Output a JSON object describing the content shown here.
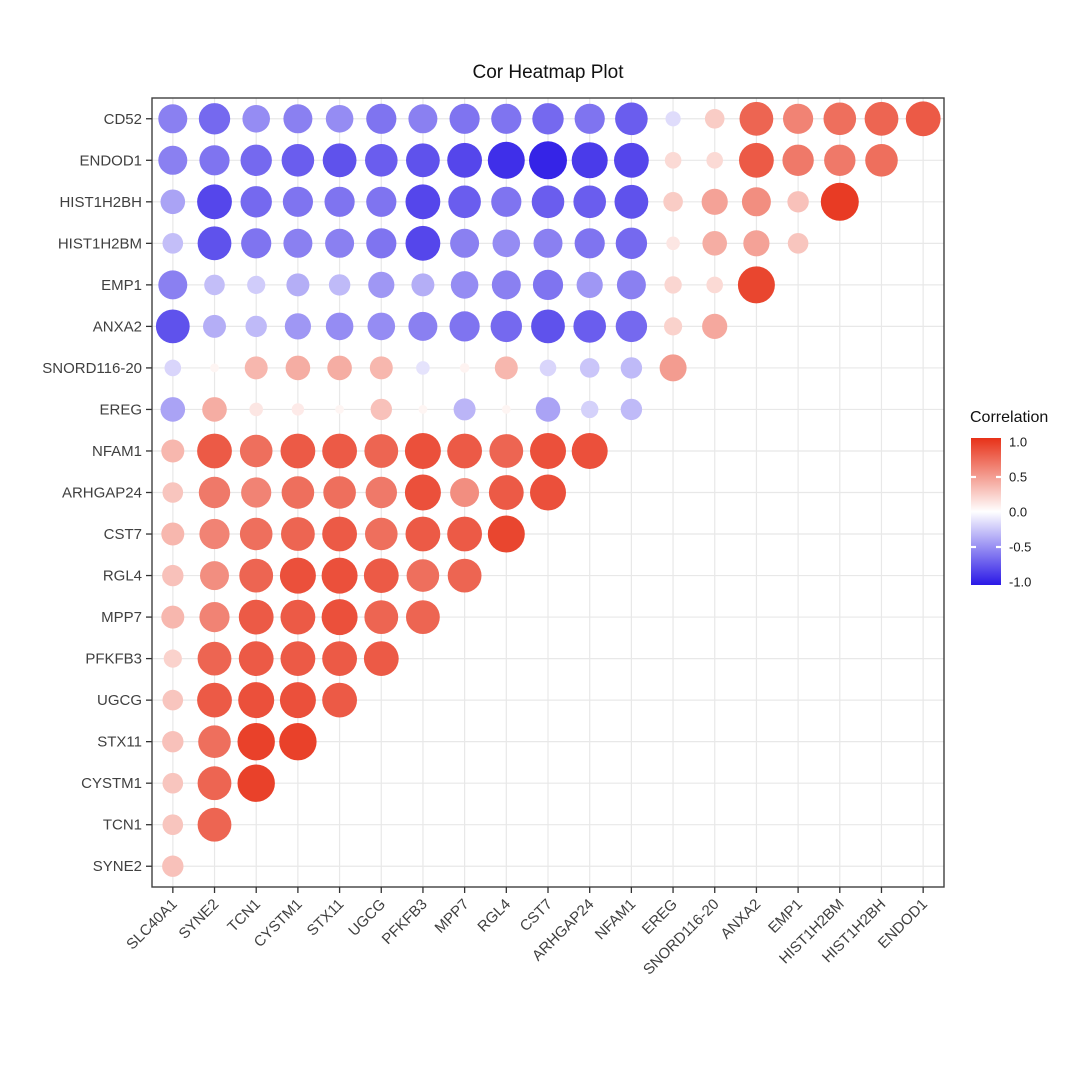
{
  "page": {
    "title": "Cor Heatmap Plot"
  },
  "legend": {
    "title": "Correlation"
  },
  "chart_data": {
    "type": "heatmap",
    "subtype": "correlation-bubble-matrix",
    "title": "Cor Heatmap Plot",
    "legend_title": "Correlation",
    "legend_ticks": [
      "1.0",
      "0.5",
      "0.0",
      "-0.5",
      "-1.0"
    ],
    "legend_tick_values": [
      1.0,
      0.5,
      0.0,
      -0.5,
      -1.0
    ],
    "color_scale": {
      "min": -1,
      "max": 1,
      "low": "#2A18E6",
      "mid": "#FFFFFF",
      "high": "#E73118"
    },
    "size_encoding": "dot size proportional to |correlation|",
    "grid": true,
    "legend_position": "right",
    "x_categories": [
      "SLC40A1",
      "SYNE2",
      "TCN1",
      "CYSTM1",
      "STX11",
      "UGCG",
      "PFKFB3",
      "MPP7",
      "RGL4",
      "CST7",
      "ARHGAP24",
      "NFAM1",
      "EREG",
      "SNORD116-20",
      "ANXA2",
      "EMP1",
      "HIST1H2BM",
      "HIST1H2BH",
      "ENDOD1"
    ],
    "y_categories": [
      "CD52",
      "ENDOD1",
      "HIST1H2BH",
      "HIST1H2BM",
      "EMP1",
      "ANXA2",
      "SNORD116-20",
      "EREG",
      "NFAM1",
      "ARHGAP24",
      "CST7",
      "RGL4",
      "MPP7",
      "PFKFB3",
      "UGCG",
      "STX11",
      "CYSTM1",
      "TCN1",
      "SYNE2"
    ],
    "values": [
      [
        -0.55,
        -0.65,
        -0.5,
        -0.55,
        -0.5,
        -0.6,
        -0.55,
        -0.6,
        -0.6,
        -0.65,
        -0.6,
        -0.7,
        -0.15,
        0.25,
        0.75,
        0.6,
        0.7,
        0.75,
        0.8
      ],
      [
        -0.55,
        -0.6,
        -0.65,
        -0.7,
        -0.75,
        -0.7,
        -0.75,
        -0.8,
        -0.9,
        -0.95,
        -0.85,
        -0.8,
        0.18,
        0.18,
        0.8,
        0.65,
        0.65,
        0.7,
        null
      ],
      [
        -0.4,
        -0.8,
        -0.65,
        -0.6,
        -0.6,
        -0.6,
        -0.8,
        -0.7,
        -0.6,
        -0.7,
        -0.7,
        -0.75,
        0.25,
        0.45,
        0.55,
        0.3,
        0.95,
        null,
        null
      ],
      [
        -0.28,
        -0.75,
        -0.6,
        -0.55,
        -0.55,
        -0.6,
        -0.8,
        -0.55,
        -0.5,
        -0.55,
        -0.6,
        -0.65,
        0.12,
        0.4,
        0.45,
        0.28,
        null,
        null,
        null
      ],
      [
        -0.55,
        -0.28,
        -0.22,
        -0.35,
        -0.3,
        -0.45,
        -0.35,
        -0.5,
        -0.55,
        -0.6,
        -0.45,
        -0.55,
        0.2,
        0.18,
        0.9,
        null,
        null,
        null,
        null
      ],
      [
        -0.75,
        -0.35,
        -0.3,
        -0.45,
        -0.5,
        -0.5,
        -0.55,
        -0.6,
        -0.65,
        -0.75,
        -0.7,
        -0.65,
        0.22,
        0.42,
        null,
        null,
        null,
        null,
        null
      ],
      [
        -0.18,
        0.05,
        0.35,
        0.4,
        0.4,
        0.35,
        -0.12,
        0.06,
        0.35,
        -0.18,
        -0.25,
        -0.3,
        0.48,
        null,
        null,
        null,
        null,
        null,
        null
      ],
      [
        -0.4,
        0.4,
        0.12,
        0.1,
        0.05,
        0.3,
        0.05,
        -0.32,
        0.05,
        -0.4,
        -0.2,
        -0.3,
        null,
        null,
        null,
        null,
        null,
        null,
        null
      ],
      [
        0.35,
        0.8,
        0.7,
        0.8,
        0.8,
        0.75,
        0.85,
        0.8,
        0.75,
        0.85,
        0.85,
        null,
        null,
        null,
        null,
        null,
        null,
        null,
        null
      ],
      [
        0.28,
        0.65,
        0.6,
        0.7,
        0.7,
        0.65,
        0.85,
        0.55,
        0.8,
        0.85,
        null,
        null,
        null,
        null,
        null,
        null,
        null,
        null,
        null
      ],
      [
        0.35,
        0.6,
        0.7,
        0.75,
        0.8,
        0.7,
        0.8,
        0.8,
        0.9,
        null,
        null,
        null,
        null,
        null,
        null,
        null,
        null,
        null,
        null
      ],
      [
        0.3,
        0.55,
        0.75,
        0.85,
        0.85,
        0.8,
        0.7,
        0.75,
        null,
        null,
        null,
        null,
        null,
        null,
        null,
        null,
        null,
        null,
        null
      ],
      [
        0.35,
        0.6,
        0.8,
        0.8,
        0.85,
        0.75,
        0.75,
        null,
        null,
        null,
        null,
        null,
        null,
        null,
        null,
        null,
        null,
        null,
        null
      ],
      [
        0.22,
        0.75,
        0.8,
        0.8,
        0.8,
        0.8,
        null,
        null,
        null,
        null,
        null,
        null,
        null,
        null,
        null,
        null,
        null,
        null,
        null
      ],
      [
        0.28,
        0.8,
        0.85,
        0.85,
        0.8,
        null,
        null,
        null,
        null,
        null,
        null,
        null,
        null,
        null,
        null,
        null,
        null,
        null,
        null
      ],
      [
        0.3,
        0.7,
        0.92,
        0.92,
        null,
        null,
        null,
        null,
        null,
        null,
        null,
        null,
        null,
        null,
        null,
        null,
        null,
        null,
        null
      ],
      [
        0.28,
        0.75,
        0.92,
        null,
        null,
        null,
        null,
        null,
        null,
        null,
        null,
        null,
        null,
        null,
        null,
        null,
        null,
        null,
        null
      ],
      [
        0.28,
        0.75,
        null,
        null,
        null,
        null,
        null,
        null,
        null,
        null,
        null,
        null,
        null,
        null,
        null,
        null,
        null,
        null,
        null
      ],
      [
        0.3,
        null,
        null,
        null,
        null,
        null,
        null,
        null,
        null,
        null,
        null,
        null,
        null,
        null,
        null,
        null,
        null,
        null,
        null
      ]
    ],
    "colors": {
      "grid": "#E8E8E8",
      "panel_border": "#404040",
      "axis_tick": "#333333",
      "axis_text": "#404040",
      "title_text": "#111111",
      "legend_text": "#1A1A1A",
      "background": "#FFFFFF"
    }
  }
}
